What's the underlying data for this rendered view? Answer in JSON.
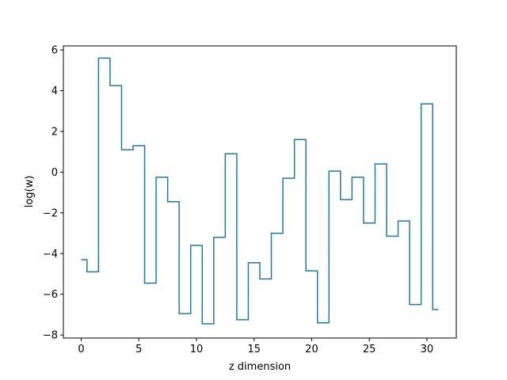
{
  "chart_data": {
    "type": "line",
    "drawstyle": "steps-mid",
    "title": "",
    "xlabel": "z dimension",
    "ylabel": "log(w)",
    "xlim": [
      -1.55,
      32.55
    ],
    "ylim": [
      -8.15,
      6.2
    ],
    "xticks": [
      0,
      5,
      10,
      15,
      20,
      25,
      30
    ],
    "yticks": [
      -8,
      -6,
      -4,
      -2,
      0,
      2,
      4,
      6
    ],
    "grid": false,
    "line_color": "#1f77b4",
    "x": [
      0,
      1,
      2,
      3,
      4,
      5,
      6,
      7,
      8,
      9,
      10,
      11,
      12,
      13,
      14,
      15,
      16,
      17,
      18,
      19,
      20,
      21,
      22,
      23,
      24,
      25,
      26,
      27,
      28,
      29,
      30,
      31
    ],
    "y": [
      -4.3,
      -4.9,
      5.6,
      4.25,
      1.1,
      1.3,
      -5.45,
      -0.25,
      -1.45,
      -6.95,
      -3.6,
      -7.45,
      -3.2,
      0.9,
      -7.25,
      -4.45,
      -5.25,
      -3.0,
      -0.3,
      1.6,
      -4.85,
      -7.4,
      0.05,
      -1.35,
      -0.25,
      -2.5,
      0.4,
      -3.15,
      -2.4,
      -6.5,
      3.35,
      -6.75
    ]
  }
}
